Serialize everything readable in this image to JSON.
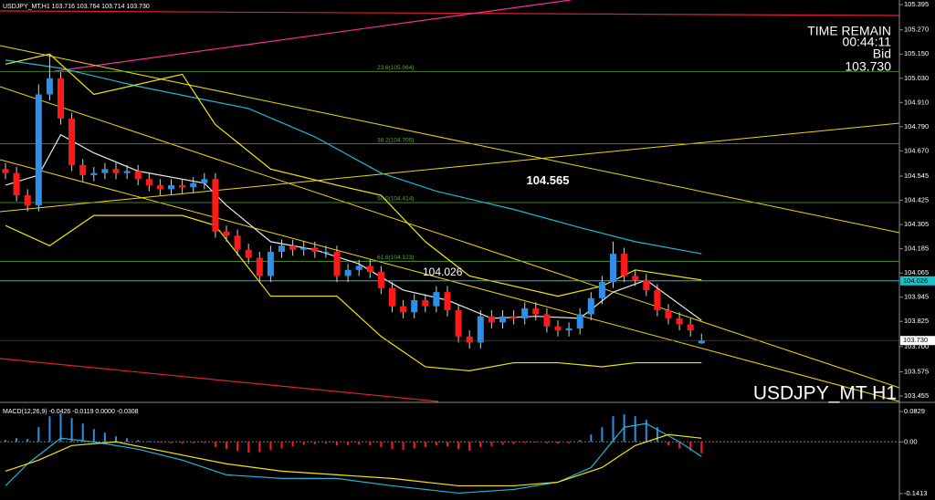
{
  "chart_data": {
    "type": "candlestick",
    "title": "USDJPY_MT H1",
    "header": "USDJPY_MT,H1  103.716 103.764 103.714 103.730",
    "time_remain_label": "TIME REMAIN",
    "time_remain": "00:44:11",
    "bid_label": "Bid",
    "bid": {
      "value": 103.73,
      "label": "103.730"
    },
    "up_color": "#2f8fe8",
    "down_color": "#ff1a1a",
    "wick_color": "#d0d0d0",
    "ylim": [
      103.428,
      105.418
    ],
    "yticks": [
      105.395,
      {
        "value": 105.27,
        "label": "105.270"
      },
      {
        "value": 105.15,
        "label": "105.150"
      },
      {
        "value": 105.03,
        "label": "105.030"
      },
      {
        "value": 104.91,
        "label": "104.910"
      },
      {
        "value": 104.79,
        "label": "104.790"
      },
      {
        "value": 104.67,
        "label": "104.670"
      },
      104.545,
      104.425,
      104.305,
      104.185,
      104.065,
      103.945,
      103.825,
      {
        "value": 103.7,
        "label": "103.700"
      },
      103.575,
      103.455
    ],
    "open": [
      104.58,
      104.56,
      104.45,
      104.4,
      104.95,
      105.03,
      104.83,
      104.6,
      104.55,
      104.56,
      104.58,
      104.56,
      104.57,
      104.53,
      104.5,
      104.48,
      104.5,
      104.49,
      104.51,
      104.53,
      104.27,
      104.25,
      104.18,
      104.14,
      104.05,
      104.17,
      104.2,
      104.18,
      104.19,
      104.17,
      104.17,
      104.05,
      104.08,
      104.1,
      104.07,
      103.99,
      103.9,
      103.87,
      103.93,
      103.9,
      103.97,
      103.88,
      103.75,
      103.72,
      103.85,
      103.82,
      103.85,
      103.84,
      103.89,
      103.86,
      103.8,
      103.78,
      103.79,
      103.86,
      103.94,
      104.02,
      104.16,
      104.05,
      104.03,
      103.98,
      103.88,
      103.84,
      103.81,
      103.716
    ],
    "high": [
      104.61,
      104.59,
      104.48,
      105.0,
      105.15,
      105.06,
      104.86,
      104.63,
      104.59,
      104.61,
      104.61,
      104.6,
      104.6,
      104.56,
      104.53,
      104.53,
      104.53,
      104.54,
      104.56,
      104.56,
      104.3,
      104.28,
      104.21,
      104.17,
      104.2,
      104.23,
      104.23,
      104.22,
      104.22,
      104.2,
      104.2,
      104.11,
      104.13,
      104.13,
      104.1,
      104.02,
      103.93,
      103.96,
      103.96,
      104.0,
      104.0,
      103.91,
      103.78,
      103.88,
      103.88,
      103.88,
      103.88,
      103.92,
      103.92,
      103.89,
      103.83,
      103.82,
      103.89,
      103.97,
      104.05,
      104.22,
      104.19,
      104.08,
      104.06,
      104.01,
      103.91,
      103.87,
      103.84,
      103.764
    ],
    "low": [
      104.53,
      104.42,
      104.37,
      104.37,
      104.92,
      104.8,
      104.57,
      104.52,
      104.52,
      104.53,
      104.53,
      104.53,
      104.5,
      104.47,
      104.45,
      104.45,
      104.46,
      104.46,
      104.48,
      104.24,
      104.22,
      104.15,
      104.11,
      104.02,
      104.02,
      104.14,
      104.15,
      104.15,
      104.14,
      104.14,
      104.02,
      104.02,
      104.05,
      104.04,
      103.96,
      103.87,
      103.84,
      103.84,
      103.87,
      103.87,
      103.85,
      103.72,
      103.69,
      103.69,
      103.79,
      103.79,
      103.81,
      103.81,
      103.83,
      103.77,
      103.75,
      103.75,
      103.76,
      103.83,
      103.91,
      103.99,
      104.02,
      104.0,
      103.95,
      103.85,
      103.81,
      103.78,
      103.75,
      103.714
    ],
    "close": [
      104.56,
      104.45,
      104.4,
      104.95,
      105.03,
      104.83,
      104.6,
      104.55,
      104.56,
      104.58,
      104.56,
      104.57,
      104.53,
      104.5,
      104.48,
      104.5,
      104.49,
      104.51,
      104.53,
      104.27,
      104.25,
      104.18,
      104.14,
      104.05,
      104.17,
      104.2,
      104.18,
      104.19,
      104.17,
      104.17,
      104.05,
      104.08,
      104.1,
      104.07,
      103.99,
      103.9,
      103.87,
      103.93,
      103.9,
      103.97,
      103.88,
      103.75,
      103.72,
      103.85,
      103.82,
      103.85,
      103.84,
      103.89,
      103.86,
      103.8,
      103.78,
      103.79,
      103.86,
      103.94,
      104.02,
      104.16,
      104.05,
      104.03,
      103.98,
      103.88,
      103.84,
      103.81,
      103.78,
      103.73
    ],
    "overlays": [
      {
        "color": "#1fb8d8",
        "x": [
          0,
          5,
          12,
          22,
          28,
          34,
          39,
          46,
          52,
          57,
          63
        ],
        "values": [
          105.12,
          105.08,
          104.99,
          104.88,
          104.74,
          104.56,
          104.47,
          104.38,
          104.29,
          104.22,
          104.16
        ]
      },
      {
        "color": "#e8e8e8",
        "x": [
          0,
          3,
          5,
          8,
          12,
          18,
          20,
          24,
          28,
          32,
          36,
          40,
          44,
          48,
          52,
          55,
          58,
          63
        ],
        "values": [
          104.5,
          104.55,
          104.75,
          104.66,
          104.57,
          104.51,
          104.4,
          104.22,
          104.18,
          104.11,
          103.98,
          103.93,
          103.84,
          103.85,
          103.84,
          103.97,
          104.03,
          103.83
        ]
      },
      {
        "color": "#f5e600",
        "x": [
          0,
          4,
          8,
          16,
          19,
          24,
          30,
          34,
          38,
          42,
          46,
          50,
          54,
          57,
          63
        ],
        "values": [
          105.1,
          105.15,
          104.95,
          105.05,
          104.8,
          104.58,
          104.5,
          104.45,
          104.22,
          104.05,
          104.0,
          103.95,
          104.0,
          104.08,
          104.03
        ]
      },
      {
        "color": "#f5e600",
        "x": [
          0,
          4,
          8,
          16,
          19,
          24,
          30,
          34,
          38,
          42,
          46,
          50,
          54,
          57,
          63
        ],
        "values": [
          104.3,
          104.2,
          104.35,
          104.35,
          104.3,
          103.95,
          103.95,
          103.75,
          103.6,
          103.58,
          103.62,
          103.62,
          103.6,
          103.62,
          103.62
        ]
      }
    ],
    "fibo_color": "#5aa832",
    "fibo": [
      {
        "value": 105.064,
        "label": "23.6(105.064)"
      },
      {
        "value": 104.705,
        "label": "38.2(104.705)"
      },
      {
        "value": 104.414,
        "label": "50.0(104.414)"
      },
      {
        "value": 104.123,
        "label": "61.8(104.123)"
      }
    ],
    "levels": [
      {
        "value": 104.026,
        "color": "#19c2c8"
      }
    ],
    "price_note": 104.565,
    "macd": {
      "type": "macd",
      "title": "MACD(12,26,9) -0.0426 -0.0119 0.0000 -0.0308",
      "ylim": [
        -0.1588,
        0.1029
      ],
      "yticks": [
        0.0829,
        {
          "value": 0,
          "label": "0.00"
        },
        -0.1413
      ],
      "zero_line": true,
      "up_color": "#2f8fe8",
      "down_color": "#ff1a1a",
      "histogram": [
        0.005,
        0.01,
        0.008,
        0.04,
        0.07,
        0.078,
        0.065,
        0.05,
        0.035,
        0.025,
        0.015,
        0.01,
        0.005,
        0.002,
        -0.002,
        -0.004,
        -0.005,
        -0.004,
        -0.003,
        -0.015,
        -0.02,
        -0.025,
        -0.03,
        -0.028,
        -0.022,
        -0.018,
        -0.012,
        -0.008,
        -0.006,
        -0.005,
        -0.01,
        -0.009,
        -0.008,
        -0.01,
        -0.015,
        -0.02,
        -0.022,
        -0.018,
        -0.015,
        -0.01,
        -0.012,
        -0.02,
        -0.024,
        -0.015,
        -0.012,
        -0.008,
        -0.006,
        -0.003,
        -0.002,
        -0.004,
        -0.005,
        -0.004,
        0.005,
        0.02,
        0.04,
        0.07,
        0.075,
        0.07,
        0.06,
        0.04,
        -0.01,
        -0.018,
        -0.024,
        -0.031
      ],
      "lines": [
        {
          "color": "#1fb8d8",
          "x": [
            0,
            2,
            5,
            8,
            12,
            16,
            20,
            25,
            30,
            35,
            41,
            46,
            50,
            53,
            56,
            58,
            61,
            63
          ],
          "values": [
            -0.12,
            -0.06,
            0.01,
            0.0,
            -0.02,
            -0.05,
            -0.09,
            -0.1,
            -0.1,
            -0.12,
            -0.14,
            -0.13,
            -0.11,
            -0.07,
            0.04,
            0.05,
            0.0,
            -0.04
          ]
        },
        {
          "color": "#f5e600",
          "x": [
            0,
            3,
            6,
            10,
            15,
            20,
            25,
            30,
            35,
            41,
            46,
            50,
            54,
            57,
            60,
            63
          ],
          "values": [
            -0.08,
            -0.05,
            -0.01,
            0.0,
            -0.03,
            -0.06,
            -0.08,
            -0.09,
            -0.1,
            -0.12,
            -0.12,
            -0.11,
            -0.07,
            -0.01,
            0.02,
            0.01
          ]
        }
      ]
    }
  }
}
